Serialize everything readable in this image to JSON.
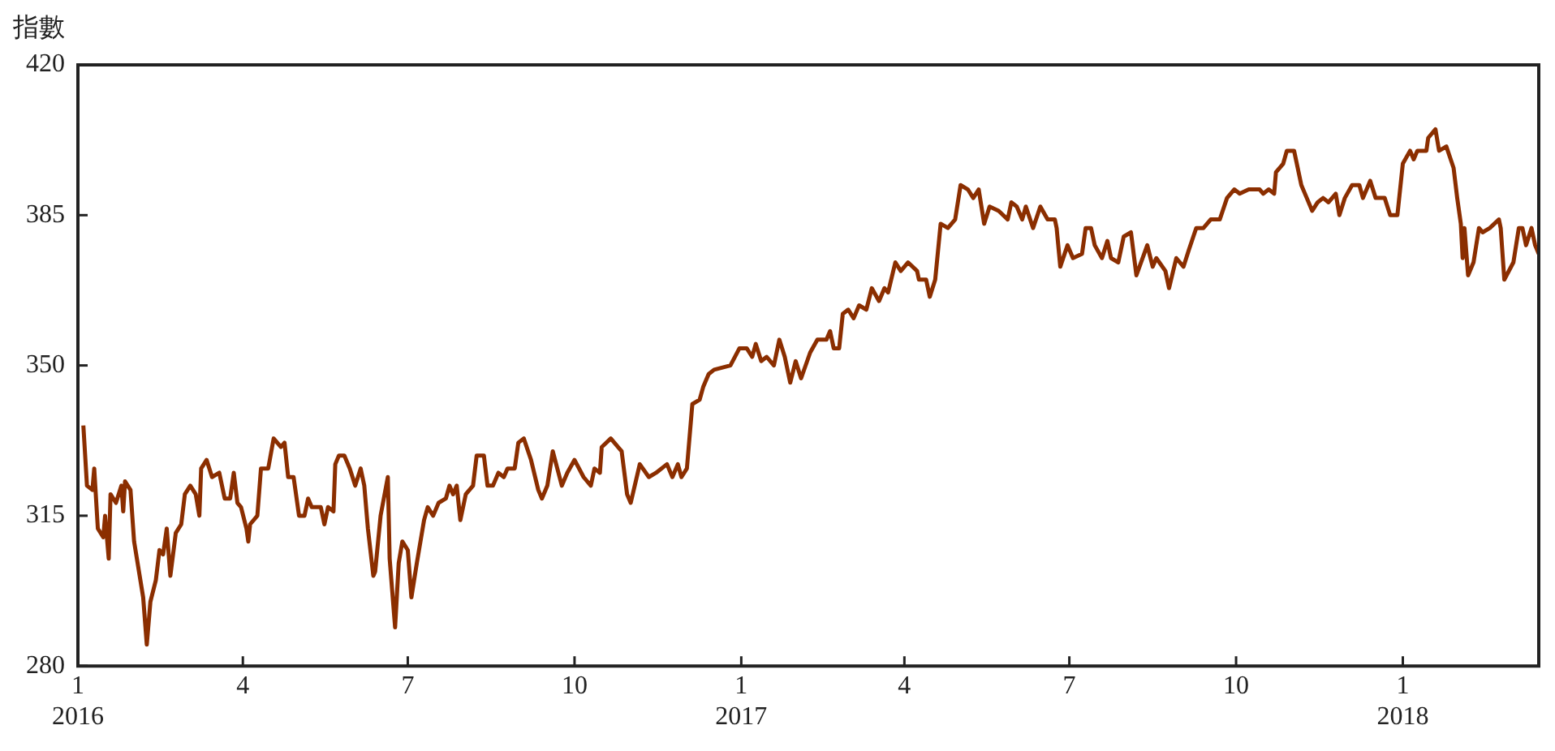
{
  "chart_data": {
    "type": "line",
    "ylabel": "指數",
    "xlim": [
      "2016-01-01",
      "2018-03-17"
    ],
    "xticks": [
      {
        "value": "2016-01-01",
        "label": "1\n2016"
      },
      {
        "value": "2016-04-01",
        "label": "4"
      },
      {
        "value": "2016-07-01",
        "label": "7"
      },
      {
        "value": "2016-10-01",
        "label": "10"
      },
      {
        "value": "2017-01-01",
        "label": "1\n2017"
      },
      {
        "value": "2017-04-01",
        "label": "4"
      },
      {
        "value": "2017-07-01",
        "label": "7"
      },
      {
        "value": "2017-10-01",
        "label": "10"
      },
      {
        "value": "2018-01-01",
        "label": "1\n2018"
      }
    ],
    "ylim": [
      280,
      420
    ],
    "yticks": [
      280,
      315,
      350,
      385,
      420
    ],
    "grid": false,
    "legend": false,
    "marker": "none",
    "line_style": "solid",
    "series": [
      {
        "color": "#8b2e00",
        "x": [
          "2016-01-04",
          "2016-01-06",
          "2016-01-09",
          "2016-01-10",
          "2016-01-12",
          "2016-01-15",
          "2016-01-16",
          "2016-01-18",
          "2016-01-19",
          "2016-01-22",
          "2016-01-25",
          "2016-01-26",
          "2016-01-27",
          "2016-01-30",
          "2016-02-01",
          "2016-02-06",
          "2016-02-08",
          "2016-02-10",
          "2016-02-13",
          "2016-02-15",
          "2016-02-17",
          "2016-02-19",
          "2016-02-21",
          "2016-02-24",
          "2016-02-27",
          "2016-02-29",
          "2016-03-03",
          "2016-03-06",
          "2016-03-08",
          "2016-03-09",
          "2016-03-12",
          "2016-03-15",
          "2016-03-19",
          "2016-03-22",
          "2016-03-25",
          "2016-03-27",
          "2016-03-29",
          "2016-03-31",
          "2016-04-03",
          "2016-04-04",
          "2016-04-05",
          "2016-04-09",
          "2016-04-11",
          "2016-04-15",
          "2016-04-18",
          "2016-04-22",
          "2016-04-24",
          "2016-04-26",
          "2016-04-29",
          "2016-05-02",
          "2016-05-05",
          "2016-05-07",
          "2016-05-09",
          "2016-05-14",
          "2016-05-16",
          "2016-05-18",
          "2016-05-21",
          "2016-05-22",
          "2016-05-24",
          "2016-05-27",
          "2016-05-30",
          "2016-06-02",
          "2016-06-05",
          "2016-06-07",
          "2016-06-09",
          "2016-06-12",
          "2016-06-13",
          "2016-06-16",
          "2016-06-20",
          "2016-06-21",
          "2016-06-24",
          "2016-06-26",
          "2016-06-28",
          "2016-07-01",
          "2016-07-03",
          "2016-07-06",
          "2016-07-10",
          "2016-07-12",
          "2016-07-15",
          "2016-07-18",
          "2016-07-22",
          "2016-07-24",
          "2016-07-26",
          "2016-07-28",
          "2016-07-30",
          "2016-08-02",
          "2016-08-06",
          "2016-08-08",
          "2016-08-12",
          "2016-08-14",
          "2016-08-17",
          "2016-08-20",
          "2016-08-23",
          "2016-08-25",
          "2016-08-29",
          "2016-08-31",
          "2016-09-03",
          "2016-09-07",
          "2016-09-11",
          "2016-09-13",
          "2016-09-16",
          "2016-09-19",
          "2016-09-24",
          "2016-09-27",
          "2016-10-01",
          "2016-10-06",
          "2016-10-10",
          "2016-10-12",
          "2016-10-15",
          "2016-10-16",
          "2016-10-21",
          "2016-10-27",
          "2016-10-30",
          "2016-11-01",
          "2016-11-06",
          "2016-11-11",
          "2016-11-15",
          "2016-11-21",
          "2016-11-24",
          "2016-11-27",
          "2016-11-29",
          "2016-12-02",
          "2016-12-05",
          "2016-12-09",
          "2016-12-11",
          "2016-12-14",
          "2016-12-17",
          "2016-12-26",
          "2016-12-31",
          "2017-01-04",
          "2017-01-07",
          "2017-01-09",
          "2017-01-12",
          "2017-01-15",
          "2017-01-19",
          "2017-01-22",
          "2017-01-25",
          "2017-01-28",
          "2017-01-31",
          "2017-02-03",
          "2017-02-08",
          "2017-02-12",
          "2017-02-17",
          "2017-02-19",
          "2017-02-21",
          "2017-02-24",
          "2017-02-26",
          "2017-03-01",
          "2017-03-04",
          "2017-03-07",
          "2017-03-11",
          "2017-03-14",
          "2017-03-18",
          "2017-03-21",
          "2017-03-23",
          "2017-03-27",
          "2017-03-30",
          "2017-04-03",
          "2017-04-08",
          "2017-04-09",
          "2017-04-13",
          "2017-04-15",
          "2017-04-18",
          "2017-04-21",
          "2017-04-25",
          "2017-04-29",
          "2017-05-02",
          "2017-05-06",
          "2017-05-09",
          "2017-05-12",
          "2017-05-15",
          "2017-05-18",
          "2017-05-23",
          "2017-05-28",
          "2017-05-30",
          "2017-06-02",
          "2017-06-05",
          "2017-06-07",
          "2017-06-11",
          "2017-06-15",
          "2017-06-19",
          "2017-06-23",
          "2017-06-24",
          "2017-06-26",
          "2017-06-30",
          "2017-07-03",
          "2017-07-08",
          "2017-07-10",
          "2017-07-13",
          "2017-07-15",
          "2017-07-19",
          "2017-07-22",
          "2017-07-24",
          "2017-07-28",
          "2017-07-31",
          "2017-08-04",
          "2017-08-07",
          "2017-08-13",
          "2017-08-16",
          "2017-08-18",
          "2017-08-23",
          "2017-08-25",
          "2017-08-29",
          "2017-09-02",
          "2017-09-05",
          "2017-09-09",
          "2017-09-13",
          "2017-09-17",
          "2017-09-22",
          "2017-09-26",
          "2017-09-30",
          "2017-10-03",
          "2017-10-08",
          "2017-10-14",
          "2017-10-16",
          "2017-10-19",
          "2017-10-22",
          "2017-10-23",
          "2017-10-27",
          "2017-10-29",
          "2017-11-02",
          "2017-11-06",
          "2017-11-09",
          "2017-11-12",
          "2017-11-15",
          "2017-11-18",
          "2017-11-21",
          "2017-11-25",
          "2017-11-27",
          "2017-11-30",
          "2017-12-04",
          "2017-12-08",
          "2017-12-10",
          "2017-12-14",
          "2017-12-17",
          "2017-12-22",
          "2017-12-25",
          "2017-12-29",
          "2018-01-01",
          "2018-01-05",
          "2018-01-07",
          "2018-01-09",
          "2018-01-14",
          "2018-01-15",
          "2018-01-19",
          "2018-01-21",
          "2018-01-25",
          "2018-01-29",
          "2018-01-31",
          "2018-02-02",
          "2018-02-03",
          "2018-02-04",
          "2018-02-06",
          "2018-02-09",
          "2018-02-12",
          "2018-02-14",
          "2018-02-18",
          "2018-02-23",
          "2018-02-24",
          "2018-02-26",
          "2018-03-03",
          "2018-03-06",
          "2018-03-08",
          "2018-03-10",
          "2018-03-13",
          "2018-03-15",
          "2018-03-17"
        ],
        "values": [
          336,
          322,
          321,
          326,
          312,
          310,
          315,
          305,
          320,
          318,
          322,
          316,
          323,
          321,
          309,
          296,
          285,
          295,
          300,
          307,
          306,
          312,
          301,
          311,
          313,
          320,
          322,
          320,
          315,
          326,
          328,
          324,
          325,
          319,
          319,
          325,
          318,
          317,
          312,
          309,
          313,
          315,
          326,
          326,
          333,
          331,
          332,
          324,
          324,
          315,
          315,
          319,
          317,
          317,
          313,
          317,
          316,
          327,
          329,
          329,
          326,
          322,
          326,
          322,
          312,
          301,
          302,
          315,
          324,
          305,
          289,
          304,
          309,
          307,
          296,
          304,
          314,
          317,
          315,
          318,
          319,
          322,
          320,
          322,
          314,
          320,
          322,
          329,
          329,
          322,
          322,
          325,
          324,
          326,
          326,
          332,
          333,
          328,
          321,
          319,
          322,
          330,
          322,
          325,
          328,
          324,
          322,
          326,
          325,
          331,
          333,
          330,
          320,
          318,
          327,
          324,
          325,
          327,
          324,
          327,
          324,
          326,
          341,
          342,
          345,
          348,
          349,
          350,
          354,
          354,
          352,
          355,
          351,
          352,
          350,
          356,
          352,
          346,
          351,
          347,
          353,
          356,
          356,
          358,
          354,
          354,
          362,
          363,
          361,
          364,
          363,
          368,
          365,
          368,
          367,
          374,
          372,
          374,
          372,
          370,
          370,
          366,
          370,
          383,
          382,
          384,
          392,
          391,
          389,
          391,
          383,
          387,
          386,
          384,
          388,
          387,
          384,
          387,
          382,
          387,
          384,
          384,
          382,
          373,
          378,
          375,
          376,
          382,
          382,
          378,
          375,
          379,
          375,
          374,
          380,
          381,
          371,
          378,
          373,
          375,
          372,
          368,
          375,
          373,
          377,
          382,
          382,
          384,
          384,
          389,
          391,
          390,
          391,
          391,
          390,
          391,
          390,
          395,
          397,
          400,
          400,
          392,
          389,
          386,
          388,
          389,
          388,
          390,
          385,
          389,
          392,
          392,
          389,
          393,
          389,
          389,
          385,
          385,
          397,
          400,
          398,
          400,
          400,
          403,
          405,
          400,
          401,
          396,
          389,
          383,
          375,
          382,
          371,
          374,
          382,
          381,
          382,
          384,
          382,
          370,
          374,
          382,
          382,
          378,
          382,
          378,
          376
        ]
      }
    ]
  }
}
